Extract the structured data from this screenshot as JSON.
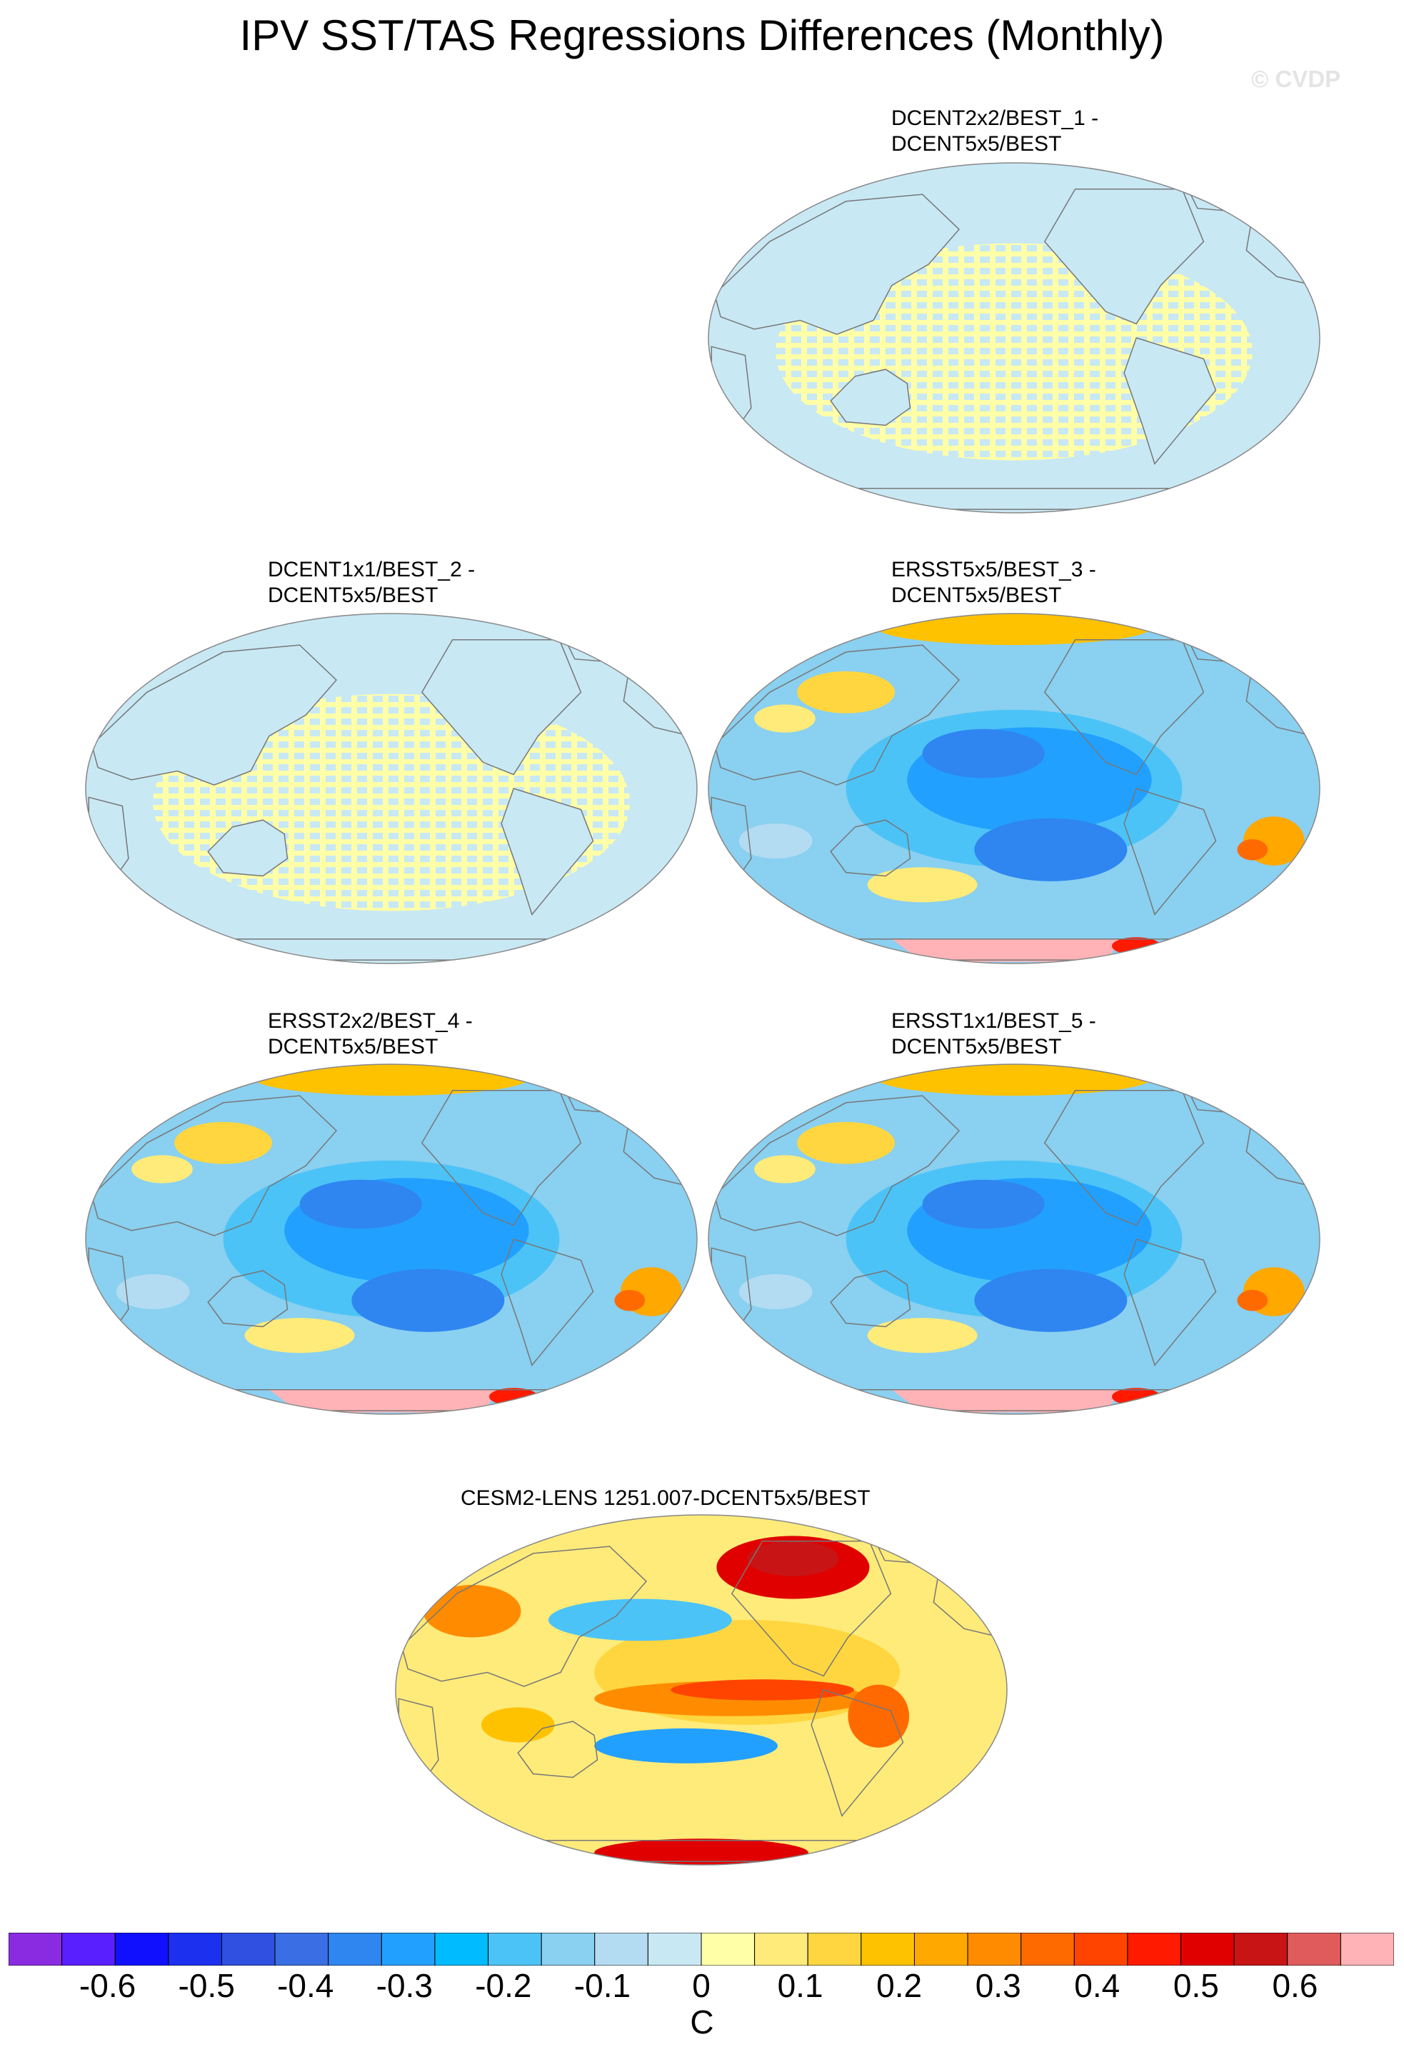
{
  "title": "IPV SST/TAS Regressions Differences (Monthly)",
  "watermark": "© CVDP",
  "panels": [
    {
      "line1": "DCENT2x2/BEST_1 -",
      "line2": "DCENT5x5/BEST",
      "pattern": "grid-near-zero"
    },
    {
      "line1": "DCENT1x1/BEST_2 -",
      "line2": "DCENT5x5/BEST",
      "pattern": "grid-near-zero"
    },
    {
      "line1": "ERSST5x5/BEST_3 -",
      "line2": "DCENT5x5/BEST",
      "pattern": "negative-pacific"
    },
    {
      "line1": "ERSST2x2/BEST_4 -",
      "line2": "DCENT5x5/BEST",
      "pattern": "negative-pacific"
    },
    {
      "line1": "ERSST1x1/BEST_5 -",
      "line2": "DCENT5x5/BEST",
      "pattern": "negative-pacific"
    },
    {
      "line1": "CESM2-LENS 1251.007-DCENT5x5/BEST",
      "line2": "",
      "pattern": "positive-warm"
    }
  ],
  "colorbar": {
    "unit": "C",
    "ticks": [
      "-0.6",
      "-0.5",
      "-0.4",
      "-0.3",
      "-0.2",
      "-0.1",
      "0",
      "0.1",
      "0.2",
      "0.3",
      "0.4",
      "0.5",
      "0.6"
    ],
    "colors": [
      "#8a2be2",
      "#5a1fff",
      "#1010ff",
      "#1c30f0",
      "#2f50e0",
      "#3a6ee4",
      "#2f86f0",
      "#22a0ff",
      "#00bbff",
      "#4cc3f7",
      "#8ad0f0",
      "#b3dcf2",
      "#c8e8f4",
      "#ffffa8",
      "#ffeb7a",
      "#ffd640",
      "#ffc200",
      "#ffa800",
      "#ff8c00",
      "#ff6a00",
      "#ff4400",
      "#ff1a00",
      "#e00000",
      "#c81414",
      "#e05c5c",
      "#ffb3b6"
    ],
    "range": [
      -0.7,
      0.7
    ]
  }
}
